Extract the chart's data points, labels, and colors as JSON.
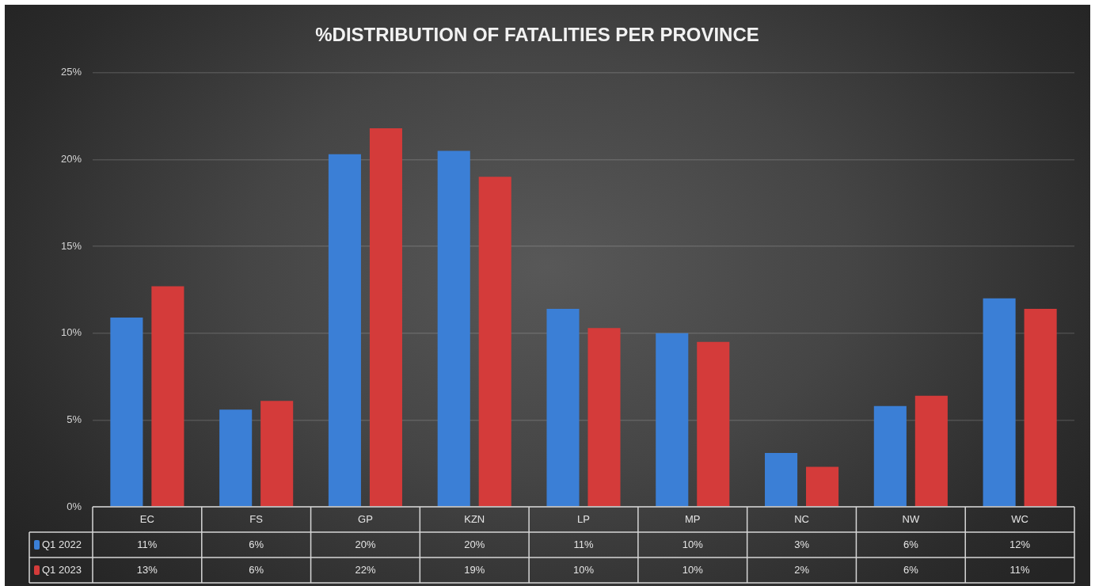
{
  "chart_data": {
    "type": "bar",
    "title": "%DISTRIBUTION OF FATALITIES PER PROVINCE",
    "categories": [
      "EC",
      "FS",
      "GP",
      "KZN",
      "LP",
      "MP",
      "NC",
      "NW",
      "WC"
    ],
    "series": [
      {
        "name": "Q1 2022",
        "color": "#3b7fd6",
        "values": [
          10.9,
          5.6,
          20.3,
          20.5,
          11.4,
          10.0,
          3.1,
          5.8,
          12.0
        ],
        "value_labels": [
          "11%",
          "6%",
          "20%",
          "20%",
          "11%",
          "10%",
          "3%",
          "6%",
          "12%"
        ]
      },
      {
        "name": "Q1 2023",
        "color": "#d43b3a",
        "values": [
          12.7,
          6.1,
          21.8,
          19.0,
          10.3,
          9.5,
          2.3,
          6.4,
          11.4
        ],
        "value_labels": [
          "13%",
          "6%",
          "22%",
          "19%",
          "10%",
          "10%",
          "2%",
          "6%",
          "11%"
        ]
      }
    ],
    "ylim": [
      0,
      25
    ],
    "yticks": [
      {
        "value": 0,
        "label": "0%"
      },
      {
        "value": 5,
        "label": "5%"
      },
      {
        "value": 10,
        "label": "10%"
      },
      {
        "value": 15,
        "label": "15%"
      },
      {
        "value": 20,
        "label": "20%"
      },
      {
        "value": 25,
        "label": "25%"
      }
    ],
    "grid": "y",
    "legend": "bottom left"
  }
}
